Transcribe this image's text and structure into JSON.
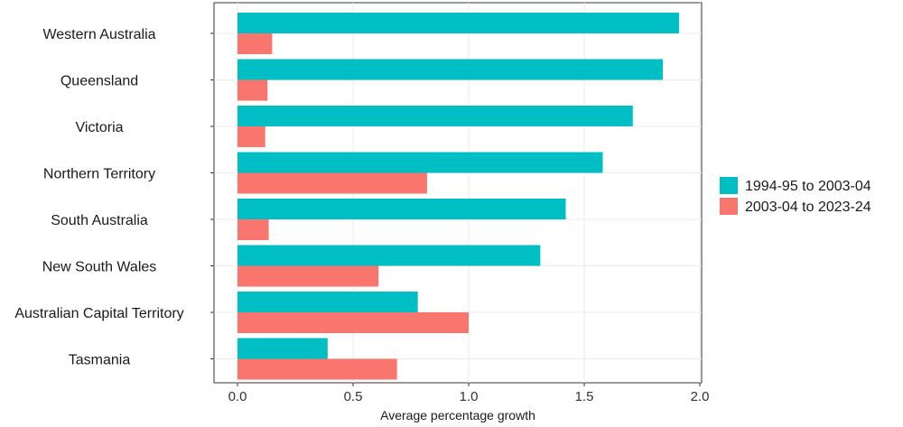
{
  "chart_data": {
    "type": "bar",
    "orientation": "horizontal",
    "title": "",
    "xlabel": "Average percentage growth",
    "ylabel": "",
    "xlim": [
      0,
      2.0
    ],
    "xticks": [
      0.0,
      0.5,
      1.0,
      1.5,
      2.0
    ],
    "xtick_labels": [
      "0.0",
      "0.5",
      "1.0",
      "1.5",
      "2.0"
    ],
    "grid": true,
    "legend_position": "right",
    "categories": [
      "Western Australia",
      "Queensland",
      "Victoria",
      "Northern Territory",
      "South Australia",
      "New South Wales",
      "Australian Capital Territory",
      "Tasmania"
    ],
    "series": [
      {
        "name": "1994-95 to 2003-04",
        "color": "#00BFC4",
        "values": [
          1.91,
          1.84,
          1.71,
          1.58,
          1.42,
          1.31,
          0.78,
          0.39
        ]
      },
      {
        "name": "2003-04 to 2023-24",
        "color": "#F8766D",
        "values": [
          0.15,
          0.13,
          0.12,
          0.82,
          0.135,
          0.61,
          1.0,
          0.69
        ]
      }
    ]
  }
}
